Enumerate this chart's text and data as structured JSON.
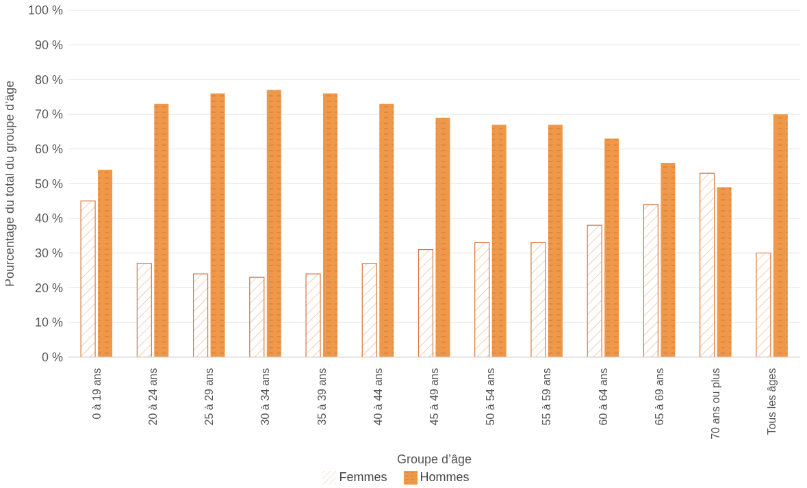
{
  "chart_data": {
    "type": "bar",
    "xlabel": "Groupe d’âge",
    "ylabel": "Pourcentage du total du groupe d’âge",
    "categories": [
      "0 à 19 ans",
      "20 à 24 ans",
      "25 à 29 ans",
      "30 à 34 ans",
      "35 à 39 ans",
      "40 à 44 ans",
      "45 à 49 ans",
      "50 à 54 ans",
      "55 à 59 ans",
      "60 à 64 ans",
      "65 à 69 ans",
      "70 ans ou plus",
      "Tous les âges"
    ],
    "series": [
      {
        "name": "Femmes",
        "color": "#d9773a",
        "values": [
          45,
          27,
          24,
          23,
          24,
          27,
          31,
          33,
          33,
          38,
          44,
          53,
          30
        ]
      },
      {
        "name": "Hommes",
        "color": "#f0984a",
        "values": [
          54,
          73,
          76,
          77,
          76,
          73,
          69,
          67,
          67,
          63,
          56,
          49,
          70
        ]
      }
    ],
    "ylim": [
      0,
      100
    ],
    "yticks": [
      {
        "value": 0,
        "label": "0 %"
      },
      {
        "value": 10,
        "label": "10 %"
      },
      {
        "value": 20,
        "label": "20 %"
      },
      {
        "value": 30,
        "label": "30 %"
      },
      {
        "value": 40,
        "label": "40 %"
      },
      {
        "value": 50,
        "label": "50 %"
      },
      {
        "value": 60,
        "label": "60 %"
      },
      {
        "value": 70,
        "label": "70 %"
      },
      {
        "value": 80,
        "label": "80 %"
      },
      {
        "value": 90,
        "label": "90 %"
      },
      {
        "value": 100,
        "label": "100 %"
      }
    ],
    "grid": "y",
    "legend": "bottom"
  }
}
